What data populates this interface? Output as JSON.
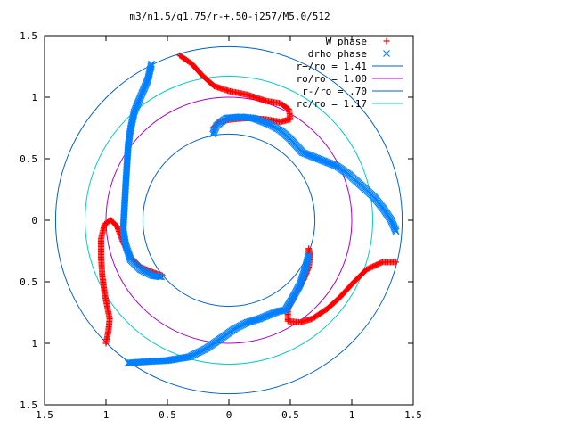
{
  "chart_data": {
    "type": "scatter",
    "title": "m3/n1.5/q1.75/r-+.50-j257/M5.0/512",
    "xlim": [
      -1.5,
      1.5
    ],
    "ylim": [
      -1.5,
      1.5
    ],
    "x_ticks": [
      {
        "value": -1.5,
        "label": "1.5"
      },
      {
        "value": -1.0,
        "label": "1"
      },
      {
        "value": -0.5,
        "label": "0.5"
      },
      {
        "value": 0.0,
        "label": "0"
      },
      {
        "value": 0.5,
        "label": "0.5"
      },
      {
        "value": 1.0,
        "label": "1"
      },
      {
        "value": 1.5,
        "label": "1.5"
      }
    ],
    "y_ticks": [
      {
        "value": 1.5,
        "label": "1.5"
      },
      {
        "value": 1.0,
        "label": "1"
      },
      {
        "value": 0.5,
        "label": "0.5"
      },
      {
        "value": 0.0,
        "label": "0"
      },
      {
        "value": -0.5,
        "label": "0.5"
      },
      {
        "value": -1.0,
        "label": "1"
      },
      {
        "value": -1.5,
        "label": "1.5"
      }
    ],
    "grid": false,
    "legend_position": "top-right",
    "series": [
      {
        "name": "W phase",
        "marker": "plus",
        "color": "#ff0000",
        "arms": [
          [
            [
              -0.4,
              1.34
            ],
            [
              -0.3,
              1.27
            ],
            [
              -0.22,
              1.18
            ],
            [
              -0.12,
              1.09
            ],
            [
              0.0,
              1.05
            ],
            [
              0.15,
              1.02
            ],
            [
              0.3,
              0.97
            ],
            [
              0.42,
              0.95
            ],
            [
              0.49,
              0.9
            ],
            [
              0.5,
              0.82
            ],
            [
              0.42,
              0.8
            ],
            [
              0.3,
              0.82
            ],
            [
              0.15,
              0.83
            ],
            [
              0.02,
              0.82
            ],
            [
              -0.08,
              0.8
            ],
            [
              -0.13,
              0.75
            ]
          ],
          [
            [
              -1.0,
              -1.0
            ],
            [
              -0.98,
              -0.9
            ],
            [
              -0.97,
              -0.8
            ],
            [
              -0.99,
              -0.7
            ],
            [
              -1.01,
              -0.6
            ],
            [
              -1.03,
              -0.45
            ],
            [
              -1.04,
              -0.3
            ],
            [
              -1.04,
              -0.15
            ],
            [
              -1.01,
              -0.03
            ],
            [
              -0.96,
              0.0
            ],
            [
              -0.91,
              -0.05
            ],
            [
              -0.86,
              -0.18
            ],
            [
              -0.8,
              -0.3
            ],
            [
              -0.72,
              -0.38
            ],
            [
              -0.6,
              -0.43
            ],
            [
              -0.54,
              -0.45
            ]
          ],
          [
            [
              1.36,
              -0.34
            ],
            [
              1.25,
              -0.34
            ],
            [
              1.12,
              -0.4
            ],
            [
              1.0,
              -0.52
            ],
            [
              0.9,
              -0.63
            ],
            [
              0.8,
              -0.72
            ],
            [
              0.68,
              -0.8
            ],
            [
              0.58,
              -0.83
            ],
            [
              0.48,
              -0.82
            ],
            [
              0.48,
              -0.72
            ],
            [
              0.54,
              -0.6
            ],
            [
              0.61,
              -0.48
            ],
            [
              0.65,
              -0.38
            ],
            [
              0.66,
              -0.3
            ],
            [
              0.65,
              -0.23
            ]
          ]
        ]
      },
      {
        "name": "drho phase",
        "marker": "cross",
        "color": "#0080ff",
        "arms": [
          [
            [
              -0.13,
              0.7
            ],
            [
              -0.1,
              0.77
            ],
            [
              -0.02,
              0.83
            ],
            [
              0.1,
              0.84
            ],
            [
              0.2,
              0.83
            ],
            [
              0.33,
              0.78
            ],
            [
              0.42,
              0.73
            ],
            [
              0.5,
              0.66
            ],
            [
              0.6,
              0.55
            ],
            [
              0.75,
              0.49
            ],
            [
              0.88,
              0.44
            ],
            [
              0.98,
              0.37
            ],
            [
              1.08,
              0.28
            ],
            [
              1.18,
              0.19
            ],
            [
              1.26,
              0.09
            ],
            [
              1.32,
              0.0
            ],
            [
              1.36,
              -0.09
            ]
          ],
          [
            [
              -0.63,
              1.27
            ],
            [
              -0.66,
              1.14
            ],
            [
              -0.72,
              1.0
            ],
            [
              -0.77,
              0.88
            ],
            [
              -0.8,
              0.74
            ],
            [
              -0.82,
              0.6
            ],
            [
              -0.83,
              0.44
            ],
            [
              -0.84,
              0.28
            ],
            [
              -0.85,
              0.1
            ],
            [
              -0.86,
              -0.08
            ],
            [
              -0.84,
              -0.2
            ],
            [
              -0.8,
              -0.32
            ],
            [
              -0.72,
              -0.4
            ],
            [
              -0.62,
              -0.45
            ],
            [
              -0.55,
              -0.46
            ]
          ],
          [
            [
              -0.82,
              -1.16
            ],
            [
              -0.68,
              -1.15
            ],
            [
              -0.5,
              -1.14
            ],
            [
              -0.32,
              -1.11
            ],
            [
              -0.18,
              -1.04
            ],
            [
              -0.05,
              -0.95
            ],
            [
              0.05,
              -0.88
            ],
            [
              0.15,
              -0.83
            ],
            [
              0.25,
              -0.8
            ],
            [
              0.4,
              -0.74
            ],
            [
              0.46,
              -0.73
            ],
            [
              0.52,
              -0.63
            ],
            [
              0.58,
              -0.52
            ],
            [
              0.62,
              -0.4
            ],
            [
              0.65,
              -0.28
            ]
          ]
        ]
      }
    ],
    "circles": [
      {
        "name": "r+/ro = 1.41",
        "radius": 1.41,
        "color": "#0060cc"
      },
      {
        "name": "ro/ro = 1.00",
        "radius": 1.0,
        "color": "#aa00cc"
      },
      {
        "name": "r-/ro = .70",
        "radius": 0.7,
        "color": "#0060cc"
      },
      {
        "name": "rc/ro = 1.17",
        "radius": 1.17,
        "color": "#00cccc"
      }
    ]
  }
}
